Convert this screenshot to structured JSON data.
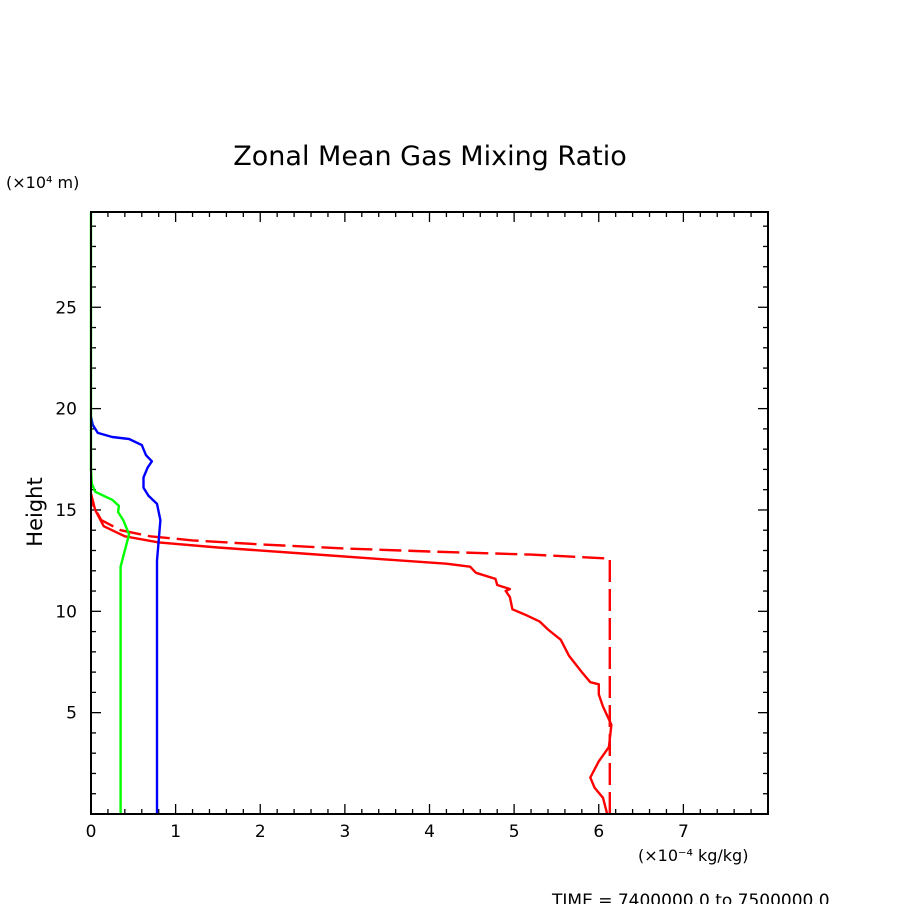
{
  "chart_data": {
    "type": "line",
    "title": "Zonal Mean Gas Mixing Ratio",
    "ylabel": "Height",
    "y_unit_label": "(×10⁴ m)",
    "x_unit_label": "(×10⁻⁴ kg/kg)",
    "footer": "TIME = 7400000.0 to 7500000.0",
    "xlim": [
      0,
      8
    ],
    "ylim": [
      0,
      29.7
    ],
    "xticks": [
      0,
      1,
      2,
      3,
      4,
      5,
      6,
      7
    ],
    "yticks": [
      5,
      10,
      15,
      20,
      25
    ],
    "colors": {
      "red": "#ff0000",
      "blue": "#0000ff",
      "green": "#00ff00",
      "axis": "#000000"
    },
    "series": [
      {
        "color": "#ff0000",
        "style": "dashed",
        "points": [
          [
            6.13,
            0
          ],
          [
            6.13,
            5
          ],
          [
            6.13,
            10
          ],
          [
            6.13,
            12.6
          ],
          [
            5.2,
            12.8
          ],
          [
            4.0,
            12.95
          ],
          [
            3.0,
            13.1
          ],
          [
            2.0,
            13.3
          ],
          [
            1.2,
            13.5
          ],
          [
            0.7,
            13.7
          ],
          [
            0.35,
            14.0
          ],
          [
            0.12,
            14.5
          ],
          [
            0.03,
            15.2
          ],
          [
            0,
            15.8
          ]
        ]
      },
      {
        "color": "#ff0000",
        "style": "solid",
        "points": [
          [
            6.1,
            0
          ],
          [
            6.05,
            0.8
          ],
          [
            5.95,
            1.3
          ],
          [
            5.9,
            1.8
          ],
          [
            6.0,
            2.6
          ],
          [
            6.12,
            3.3
          ],
          [
            6.15,
            4.4
          ],
          [
            6.05,
            5.3
          ],
          [
            6.0,
            5.9
          ],
          [
            6.0,
            6.4
          ],
          [
            5.9,
            6.5
          ],
          [
            5.8,
            7.0
          ],
          [
            5.65,
            7.8
          ],
          [
            5.55,
            8.6
          ],
          [
            5.4,
            9.1
          ],
          [
            5.3,
            9.5
          ],
          [
            5.15,
            9.8
          ],
          [
            4.98,
            10.1
          ],
          [
            4.95,
            10.7
          ],
          [
            4.9,
            11.0
          ],
          [
            4.95,
            11.1
          ],
          [
            4.8,
            11.3
          ],
          [
            4.78,
            11.6
          ],
          [
            4.55,
            11.9
          ],
          [
            4.48,
            12.2
          ],
          [
            4.2,
            12.35
          ],
          [
            3.5,
            12.55
          ],
          [
            2.5,
            12.85
          ],
          [
            1.5,
            13.15
          ],
          [
            0.8,
            13.4
          ],
          [
            0.4,
            13.7
          ],
          [
            0.15,
            14.2
          ],
          [
            0.05,
            15.0
          ],
          [
            0,
            15.8
          ]
        ]
      },
      {
        "color": "#0000ff",
        "style": "solid",
        "points": [
          [
            0.78,
            0
          ],
          [
            0.78,
            5
          ],
          [
            0.78,
            10
          ],
          [
            0.78,
            12.5
          ],
          [
            0.8,
            13.5
          ],
          [
            0.82,
            14.5
          ],
          [
            0.78,
            15.3
          ],
          [
            0.68,
            15.7
          ],
          [
            0.62,
            16.1
          ],
          [
            0.62,
            16.6
          ],
          [
            0.67,
            17.1
          ],
          [
            0.72,
            17.4
          ],
          [
            0.65,
            17.7
          ],
          [
            0.6,
            18.2
          ],
          [
            0.45,
            18.5
          ],
          [
            0.25,
            18.6
          ],
          [
            0.08,
            18.8
          ],
          [
            0.02,
            19.2
          ],
          [
            0,
            19.6
          ]
        ]
      },
      {
        "color": "#00ff00",
        "style": "solid",
        "points": [
          [
            0.35,
            0
          ],
          [
            0.35,
            5
          ],
          [
            0.35,
            9.5
          ],
          [
            0.35,
            12.2
          ],
          [
            0.4,
            13.0
          ],
          [
            0.45,
            13.8
          ],
          [
            0.38,
            14.5
          ],
          [
            0.32,
            14.9
          ],
          [
            0.33,
            15.2
          ],
          [
            0.25,
            15.5
          ],
          [
            0.15,
            15.7
          ],
          [
            0.05,
            15.9
          ],
          [
            0.01,
            16.3
          ],
          [
            0,
            17
          ],
          [
            0,
            29.7
          ]
        ]
      }
    ]
  }
}
